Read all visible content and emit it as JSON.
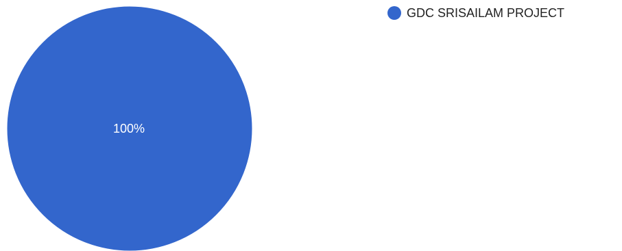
{
  "chart_data": {
    "type": "pie",
    "slices": [
      {
        "label": "GDC SRISAILAM PROJECT",
        "value": 100,
        "display": "100%",
        "color": "#3366cc"
      }
    ],
    "legend_position": "top-right"
  },
  "colors": {
    "background": "#ffffff",
    "slice_label": "#ffffff",
    "legend_text": "#222222"
  }
}
